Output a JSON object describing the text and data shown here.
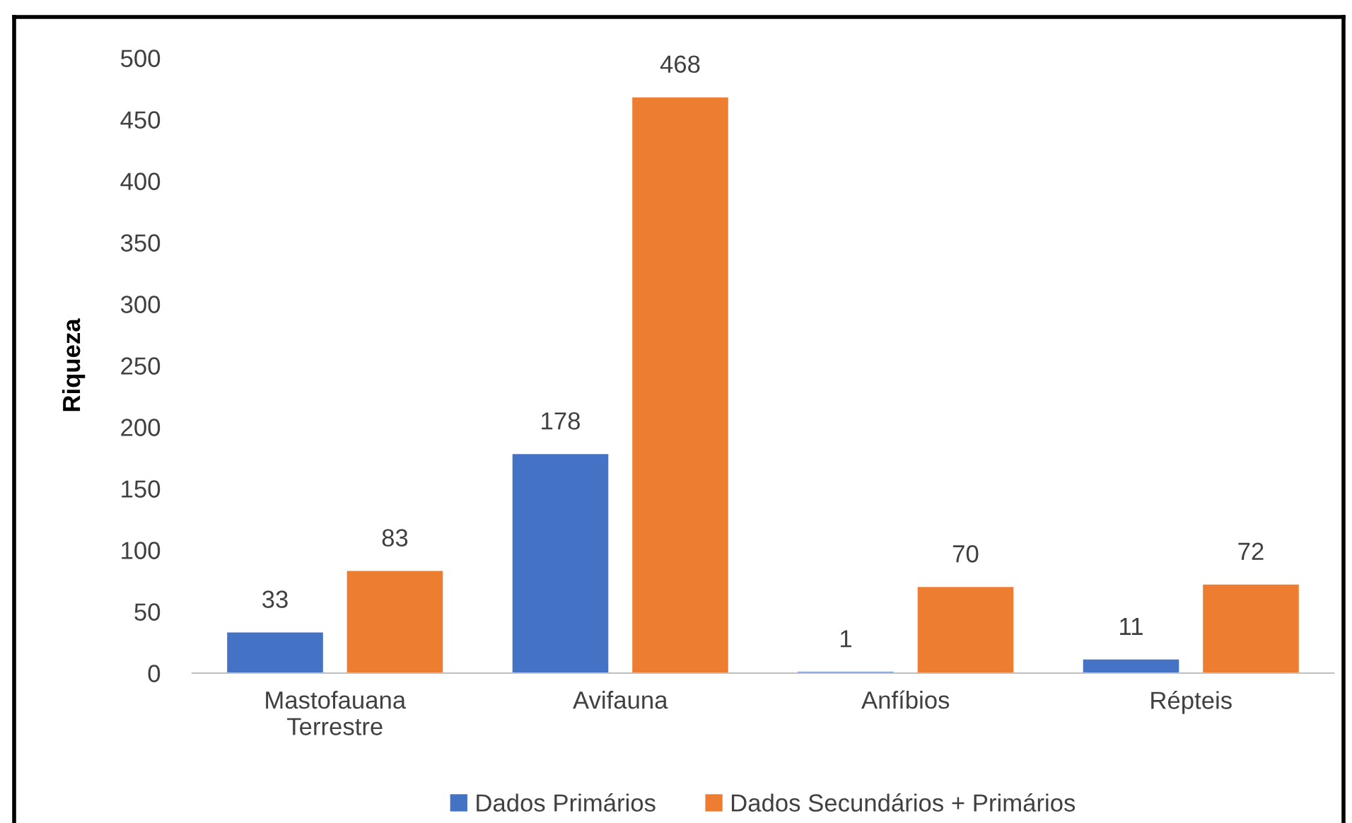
{
  "chart_data": {
    "type": "bar",
    "ylabel": "Riqueza",
    "categories": [
      "Mastofauana\nTerrestre",
      "Avifauna",
      "Anfíbios",
      "Répteis"
    ],
    "series": [
      {
        "name": "Dados Primários",
        "color": "#4472c4",
        "values": [
          33,
          178,
          1,
          11
        ]
      },
      {
        "name": "Dados Secundários + Primários",
        "color": "#ed7d31",
        "values": [
          83,
          468,
          70,
          72
        ]
      }
    ],
    "ylim": [
      0,
      500
    ],
    "yticks": [
      0,
      50,
      100,
      150,
      200,
      250,
      300,
      350,
      400,
      450,
      500
    ],
    "data_labels": true,
    "legend": "bottom",
    "grid": false
  }
}
